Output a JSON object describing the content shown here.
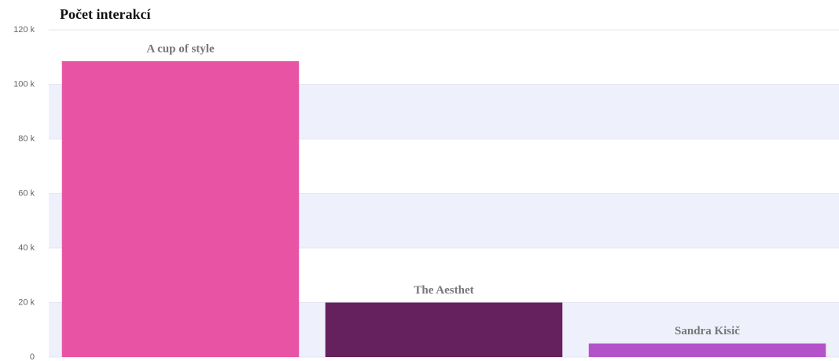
{
  "chart_data": {
    "type": "bar",
    "title": "Počet interakcí",
    "categories": [
      "A cup of style",
      "The Aesthet",
      "Sandra Kisič"
    ],
    "values": [
      108500,
      20000,
      5000
    ],
    "colors": [
      "#e953a4",
      "#65205e",
      "#b452c9"
    ],
    "ylim": [
      0,
      120000
    ],
    "yticks": [
      0,
      {
        "value": 20000,
        "label": "20 k"
      },
      {
        "value": 40000,
        "label": "40 k"
      },
      {
        "value": 60000,
        "label": "60 k"
      },
      {
        "value": 80000,
        "label": "80 k"
      },
      {
        "value": 100000,
        "label": "100 k"
      },
      {
        "value": 120000,
        "label": "120 k"
      }
    ],
    "grid": true
  }
}
